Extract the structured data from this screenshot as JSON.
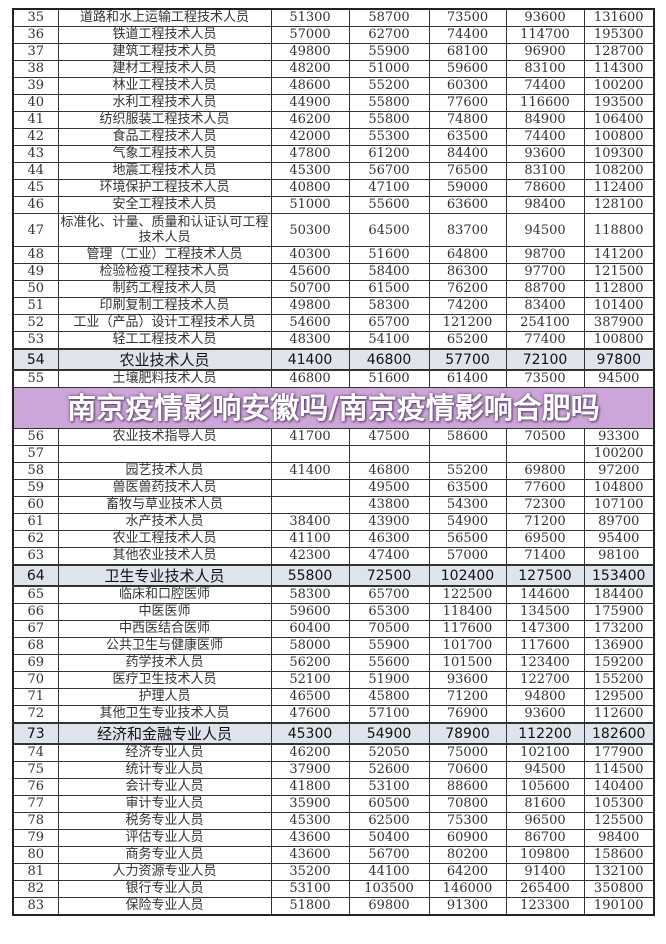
{
  "rows": [
    [
      "35",
      "道路和水上运输工程技术人员",
      "51300",
      "58700",
      "73500",
      "93600",
      "131600"
    ],
    [
      "36",
      "铁道工程技术人员",
      "57000",
      "62700",
      "74400",
      "114700",
      "195300"
    ],
    [
      "37",
      "建筑工程技术人员",
      "49800",
      "55900",
      "68100",
      "96900",
      "128700"
    ],
    [
      "38",
      "建材工程技术人员",
      "48200",
      "51000",
      "59600",
      "83100",
      "114300"
    ],
    [
      "39",
      "林业工程技术人员",
      "48600",
      "55200",
      "60300",
      "74400",
      "100200"
    ],
    [
      "40",
      "水利工程技术人员",
      "44900",
      "55800",
      "77600",
      "116600",
      "193500"
    ],
    [
      "41",
      "纺织服装工程技术人员",
      "46200",
      "55800",
      "74800",
      "84900",
      "106400"
    ],
    [
      "42",
      "食品工程技术人员",
      "42000",
      "55300",
      "63500",
      "74400",
      "100800"
    ],
    [
      "43",
      "气象工程技术人员",
      "47800",
      "61200",
      "84400",
      "93600",
      "109300"
    ],
    [
      "44",
      "地震工程技术人员",
      "45300",
      "56700",
      "76500",
      "83100",
      "108200"
    ],
    [
      "45",
      "环境保护工程技术人员",
      "40800",
      "47100",
      "59000",
      "78600",
      "112400"
    ],
    [
      "46",
      "安全工程技术人员",
      "51000",
      "55600",
      "63600",
      "98400",
      "128100"
    ],
    [
      "47",
      "标准化、计量、质量和认证认可工程技术人员",
      "50300",
      "64500",
      "83700",
      "94500",
      "118800"
    ],
    [
      "48",
      "管理（工业）工程技术人员",
      "40300",
      "51600",
      "64800",
      "98700",
      "141200"
    ],
    [
      "49",
      "检验检疫工程技术人员",
      "45600",
      "58400",
      "86300",
      "97700",
      "121500"
    ],
    [
      "50",
      "制药工程技术人员",
      "50700",
      "61500",
      "76200",
      "88700",
      "112800"
    ],
    [
      "51",
      "印刷复制工程技术人员",
      "49800",
      "58300",
      "74200",
      "83400",
      "101400"
    ],
    [
      "52",
      "工业（产品）设计工程技术人员",
      "54600",
      "65700",
      "121200",
      "254100",
      "387900"
    ],
    [
      "53",
      "轻工工程技术人员",
      "48300",
      "54100",
      "65200",
      "77400",
      "100800"
    ],
    [
      "54",
      "农业技术人员",
      "41400",
      "46800",
      "57700",
      "72100",
      "97800"
    ],
    [
      "55",
      "土壤肥料技术人员",
      "46800",
      "51600",
      "61400",
      "73500",
      "94500"
    ],
    [
      "56",
      "农业技术指导人员",
      "41700",
      "47500",
      "58600",
      "70500",
      "93300"
    ],
    [
      "57",
      "",
      "",
      "",
      "",
      "",
      "100200"
    ],
    [
      "58",
      "园艺技术人员",
      "41400",
      "46800",
      "55200",
      "69800",
      "97200"
    ],
    [
      "59",
      "兽医兽药技术人员",
      "",
      "49500",
      "63500",
      "77600",
      "104800"
    ],
    [
      "60",
      "畜牧与草业技术人员",
      "",
      "43800",
      "54300",
      "72300",
      "107100"
    ],
    [
      "61",
      "水产技术人员",
      "38400",
      "43900",
      "54900",
      "71200",
      "89700"
    ],
    [
      "62",
      "农业工程技术人员",
      "41100",
      "46300",
      "56500",
      "69500",
      "95400"
    ],
    [
      "63",
      "其他农业技术人员",
      "42300",
      "47400",
      "57000",
      "71400",
      "98100"
    ],
    [
      "64",
      "卫生专业技术人员",
      "55800",
      "72500",
      "102400",
      "127500",
      "153400"
    ],
    [
      "65",
      "临床和口腔医师",
      "58300",
      "65700",
      "122500",
      "144600",
      "184400"
    ],
    [
      "66",
      "中医医师",
      "59600",
      "65300",
      "118400",
      "134500",
      "175900"
    ],
    [
      "67",
      "中西医结合医师",
      "60400",
      "70500",
      "117600",
      "147300",
      "173200"
    ],
    [
      "68",
      "公共卫生与健康医师",
      "58000",
      "55900",
      "101700",
      "117600",
      "136900"
    ],
    [
      "69",
      "药学技术人员",
      "56200",
      "55600",
      "101500",
      "123400",
      "159200"
    ],
    [
      "70",
      "医疗卫生技术人员",
      "52100",
      "51900",
      "93600",
      "122700",
      "155200"
    ],
    [
      "71",
      "护理人员",
      "46500",
      "45800",
      "71200",
      "94800",
      "129500"
    ],
    [
      "72",
      "其他卫生专业技术人员",
      "47600",
      "57100",
      "76900",
      "93600",
      "112600"
    ],
    [
      "73",
      "经济和金融专业人员",
      "45300",
      "54900",
      "78900",
      "112200",
      "182600"
    ],
    [
      "74",
      "经济专业人员",
      "46200",
      "52050",
      "75000",
      "102100",
      "177900"
    ],
    [
      "75",
      "统计专业人员",
      "37900",
      "52600",
      "70600",
      "94500",
      "114500"
    ],
    [
      "76",
      "会计专业人员",
      "41800",
      "53100",
      "88600",
      "105600",
      "140400"
    ],
    [
      "77",
      "审计专业人员",
      "35900",
      "60500",
      "70800",
      "81600",
      "105300"
    ],
    [
      "78",
      "税务专业人员",
      "45300",
      "62500",
      "75300",
      "96500",
      "125500"
    ],
    [
      "79",
      "评估专业人员",
      "43600",
      "50400",
      "60900",
      "86700",
      "98400"
    ],
    [
      "80",
      "商务专业人员",
      "43600",
      "56700",
      "80200",
      "109800",
      "158600"
    ],
    [
      "81",
      "人力资源专业人员",
      "35200",
      "44100",
      "64200",
      "91400",
      "132100"
    ],
    [
      "82",
      "银行专业人员",
      "53100",
      "103500",
      "146000",
      "265400",
      "350800"
    ],
    [
      "83",
      "保险专业人员",
      "51800",
      "69800",
      "91300",
      "123300",
      "190100"
    ]
  ],
  "section_rows": [
    "54",
    "64",
    "73"
  ],
  "tall_rows": [
    "47"
  ],
  "banner": {
    "title": "南京疫情影响安徽吗/南京疫情影响合肥吗",
    "color": "#c89cd4"
  }
}
